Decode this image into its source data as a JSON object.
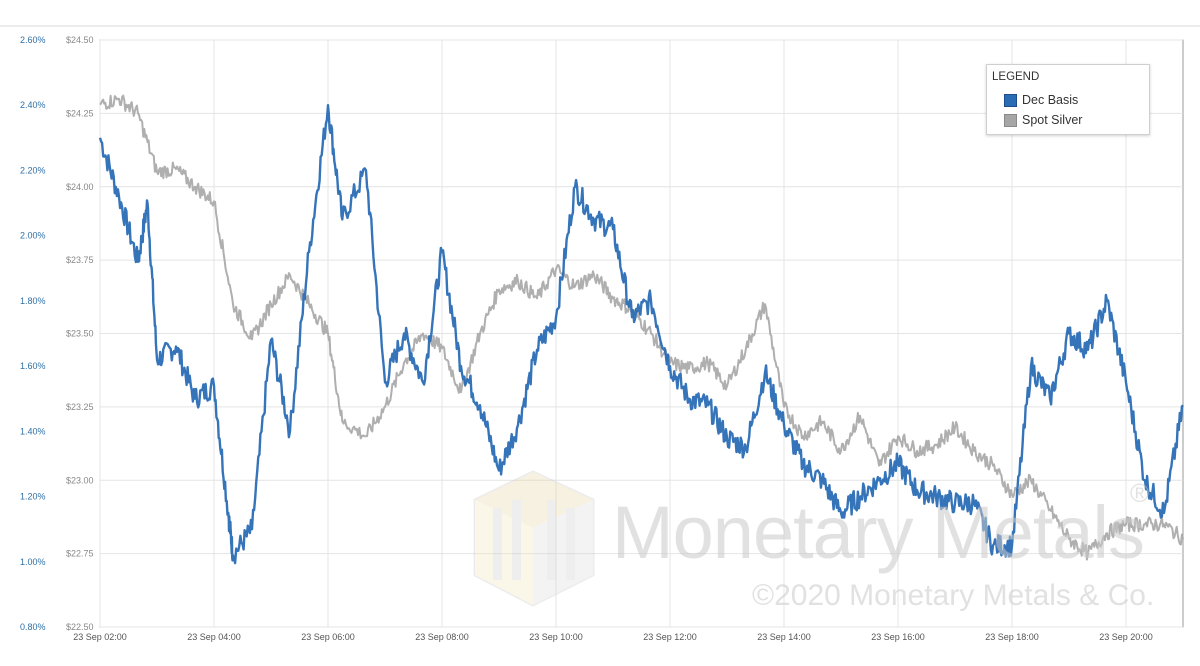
{
  "chart_data": {
    "type": "line",
    "title": "",
    "xlabel": "",
    "ylabel": "",
    "legend": {
      "title": "LEGEND",
      "placement": "top-right",
      "entries": [
        {
          "name": "Dec Basis",
          "color": "#2a6db5"
        },
        {
          "name": "Spot Silver",
          "color": "#a6a6a6"
        }
      ]
    },
    "left_axis_pct": {
      "range": [
        0.8,
        2.6
      ],
      "ticks": [
        "0.80%",
        "1.00%",
        "1.20%",
        "1.40%",
        "1.60%",
        "1.80%",
        "2.00%",
        "2.20%",
        "2.40%",
        "2.60%"
      ]
    },
    "right_axis_usd": {
      "range": [
        22.5,
        24.5
      ],
      "ticks": [
        "$22.50",
        "$22.75",
        "$23.00",
        "$23.25",
        "$23.50",
        "$23.75",
        "$24.00",
        "$24.25",
        "$24.50"
      ]
    },
    "x_axis": {
      "range_hours": [
        2,
        21
      ],
      "ticks": [
        "23 Sep 02:00",
        "23 Sep 04:00",
        "23 Sep 06:00",
        "23 Sep 08:00",
        "23 Sep 10:00",
        "23 Sep 12:00",
        "23 Sep 14:00",
        "23 Sep 16:00",
        "23 Sep 18:00",
        "23 Sep 20:00"
      ]
    },
    "grid": true,
    "series": [
      {
        "name": "Dec Basis",
        "axis": "percent",
        "color": "#2a6db5",
        "x": [
          "23 Sep 02:00",
          "23 Sep 02:20",
          "23 Sep 02:40",
          "23 Sep 02:50",
          "23 Sep 03:00",
          "23 Sep 03:20",
          "23 Sep 03:40",
          "23 Sep 04:00",
          "23 Sep 04:15",
          "23 Sep 04:20",
          "23 Sep 04:40",
          "23 Sep 05:00",
          "23 Sep 05:20",
          "23 Sep 05:40",
          "23 Sep 06:00",
          "23 Sep 06:15",
          "23 Sep 06:40",
          "23 Sep 07:00",
          "23 Sep 07:20",
          "23 Sep 07:40",
          "23 Sep 08:00",
          "23 Sep 08:20",
          "23 Sep 08:40",
          "23 Sep 09:00",
          "23 Sep 09:20",
          "23 Sep 09:40",
          "23 Sep 10:00",
          "23 Sep 10:20",
          "23 Sep 10:40",
          "23 Sep 11:00",
          "23 Sep 11:20",
          "23 Sep 11:40",
          "23 Sep 12:00",
          "23 Sep 12:20",
          "23 Sep 12:40",
          "23 Sep 13:00",
          "23 Sep 13:20",
          "23 Sep 13:40",
          "23 Sep 14:00",
          "23 Sep 14:20",
          "23 Sep 14:40",
          "23 Sep 15:00",
          "23 Sep 15:20",
          "23 Sep 15:40",
          "23 Sep 16:00",
          "23 Sep 16:20",
          "23 Sep 16:40",
          "23 Sep 17:00",
          "23 Sep 17:20",
          "23 Sep 17:40",
          "23 Sep 18:00",
          "23 Sep 18:20",
          "23 Sep 18:40",
          "23 Sep 19:00",
          "23 Sep 19:20",
          "23 Sep 19:40",
          "23 Sep 20:00",
          "23 Sep 20:20",
          "23 Sep 20:40",
          "23 Sep 21:00"
        ],
        "y": [
          2.3,
          2.12,
          1.92,
          2.1,
          1.62,
          1.66,
          1.5,
          1.54,
          1.15,
          1.02,
          1.1,
          1.68,
          1.4,
          1.95,
          2.4,
          2.05,
          2.2,
          1.55,
          1.7,
          1.55,
          1.95,
          1.6,
          1.48,
          1.28,
          1.42,
          1.65,
          1.75,
          2.15,
          2.05,
          2.02,
          1.75,
          1.8,
          1.6,
          1.5,
          1.48,
          1.38,
          1.35,
          1.58,
          1.42,
          1.3,
          1.25,
          1.15,
          1.2,
          1.25,
          1.3,
          1.22,
          1.2,
          1.18,
          1.18,
          1.05,
          1.05,
          1.6,
          1.5,
          1.7,
          1.65,
          1.8,
          1.55,
          1.25,
          1.15,
          1.48
        ]
      },
      {
        "name": "Spot Silver",
        "axis": "price",
        "color": "#a6a6a6",
        "x": [
          "23 Sep 02:00",
          "23 Sep 02:20",
          "23 Sep 02:40",
          "23 Sep 03:00",
          "23 Sep 03:20",
          "23 Sep 03:40",
          "23 Sep 04:00",
          "23 Sep 04:20",
          "23 Sep 04:40",
          "23 Sep 05:00",
          "23 Sep 05:20",
          "23 Sep 05:40",
          "23 Sep 06:00",
          "23 Sep 06:15",
          "23 Sep 06:40",
          "23 Sep 07:00",
          "23 Sep 07:20",
          "23 Sep 07:40",
          "23 Sep 08:00",
          "23 Sep 08:20",
          "23 Sep 08:40",
          "23 Sep 09:00",
          "23 Sep 09:20",
          "23 Sep 09:40",
          "23 Sep 10:00",
          "23 Sep 10:20",
          "23 Sep 10:40",
          "23 Sep 11:00",
          "23 Sep 11:20",
          "23 Sep 11:40",
          "23 Sep 12:00",
          "23 Sep 12:20",
          "23 Sep 12:40",
          "23 Sep 13:00",
          "23 Sep 13:20",
          "23 Sep 13:40",
          "23 Sep 14:00",
          "23 Sep 14:20",
          "23 Sep 14:40",
          "23 Sep 15:00",
          "23 Sep 15:20",
          "23 Sep 15:40",
          "23 Sep 16:00",
          "23 Sep 16:20",
          "23 Sep 16:40",
          "23 Sep 17:00",
          "23 Sep 17:20",
          "23 Sep 17:40",
          "23 Sep 18:00",
          "23 Sep 18:20",
          "23 Sep 18:40",
          "23 Sep 19:00",
          "23 Sep 19:20",
          "23 Sep 19:40",
          "23 Sep 20:00",
          "23 Sep 20:20",
          "23 Sep 20:40",
          "23 Sep 21:00"
        ],
        "y": [
          24.28,
          24.3,
          24.25,
          24.05,
          24.06,
          24.0,
          23.95,
          23.6,
          23.48,
          23.6,
          23.7,
          23.6,
          23.5,
          23.2,
          23.15,
          23.25,
          23.4,
          23.5,
          23.45,
          23.3,
          23.5,
          23.65,
          23.68,
          23.62,
          23.72,
          23.66,
          23.7,
          23.62,
          23.58,
          23.5,
          23.4,
          23.38,
          23.4,
          23.32,
          23.45,
          23.6,
          23.25,
          23.15,
          23.2,
          23.1,
          23.22,
          23.05,
          23.15,
          23.1,
          23.12,
          23.18,
          23.1,
          23.05,
          22.95,
          23.0,
          22.9,
          22.8,
          22.75,
          22.82,
          22.85,
          22.85,
          22.85,
          22.8
        ]
      }
    ]
  },
  "watermark": {
    "name": "Monetary Metals",
    "registered": "®",
    "copyright": "©2020 Monetary Metals & Co."
  }
}
